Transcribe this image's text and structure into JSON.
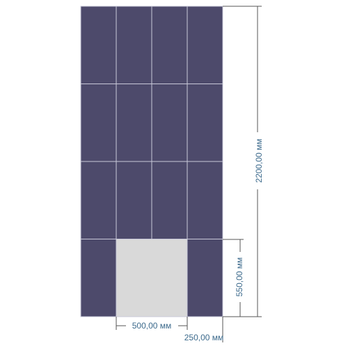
{
  "dimensions": {
    "total_height": "2200,00 мм",
    "opening_height": "550,00 мм",
    "opening_width": "500,00 мм",
    "offset": "250,00 мм"
  }
}
